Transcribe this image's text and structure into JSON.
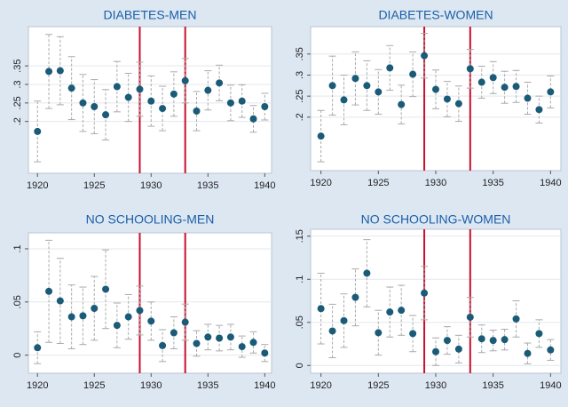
{
  "chart_data": [
    {
      "type": "errorbar",
      "title": "DIABETES-MEN",
      "x": [
        1920,
        1921,
        1922,
        1923,
        1924,
        1925,
        1926,
        1927,
        1928,
        1929,
        1930,
        1931,
        1932,
        1933,
        1934,
        1935,
        1936,
        1937,
        1938,
        1939,
        1940
      ],
      "values": [
        0.173,
        0.335,
        0.337,
        0.29,
        0.25,
        0.24,
        0.218,
        0.294,
        0.265,
        0.287,
        0.255,
        0.235,
        0.274,
        0.31,
        0.228,
        0.284,
        0.304,
        0.25,
        0.255,
        0.207,
        0.24
      ],
      "errors": [
        0.082,
        0.1,
        0.092,
        0.085,
        0.077,
        0.073,
        0.068,
        0.068,
        0.065,
        0.073,
        0.068,
        0.06,
        0.06,
        0.06,
        0.053,
        0.053,
        0.048,
        0.048,
        0.044,
        0.036,
        0.036
      ],
      "xlim": [
        1919.2,
        1940.6
      ],
      "ylim": [
        0.06,
        0.456
      ],
      "xticks": [
        1920,
        1925,
        1930,
        1935,
        1940
      ],
      "yticks": [
        {
          "value": 0.2,
          "label": ".2"
        },
        {
          "value": 0.25,
          "label": ".25"
        },
        {
          "value": 0.3,
          "label": ".3"
        },
        {
          "value": 0.35,
          "label": ".35"
        }
      ],
      "vlines": [
        1929,
        1933
      ],
      "color": "#1a5b78",
      "vline_color": "#c8102e",
      "grid": true
    },
    {
      "type": "errorbar",
      "title": "DIABETES-WOMEN",
      "x": [
        1920,
        1921,
        1922,
        1923,
        1924,
        1925,
        1926,
        1927,
        1928,
        1929,
        1930,
        1931,
        1932,
        1933,
        1934,
        1935,
        1936,
        1937,
        1938,
        1939,
        1940
      ],
      "values": [
        0.155,
        0.275,
        0.241,
        0.292,
        0.275,
        0.26,
        0.317,
        0.23,
        0.302,
        0.346,
        0.266,
        0.243,
        0.232,
        0.315,
        0.283,
        0.294,
        0.271,
        0.273,
        0.245,
        0.218,
        0.26
      ],
      "errors": [
        0.061,
        0.07,
        0.059,
        0.063,
        0.059,
        0.053,
        0.053,
        0.046,
        0.053,
        0.053,
        0.046,
        0.042,
        0.042,
        0.046,
        0.038,
        0.038,
        0.038,
        0.038,
        0.038,
        0.032,
        0.038
      ],
      "xlim": [
        1919.1,
        1940.9
      ],
      "ylim": [
        0.073,
        0.415
      ],
      "xticks": [
        1920,
        1925,
        1930,
        1935,
        1940
      ],
      "yticks": [
        {
          "value": 0.2,
          "label": ".2"
        },
        {
          "value": 0.25,
          "label": ".25"
        },
        {
          "value": 0.3,
          "label": ".3"
        },
        {
          "value": 0.35,
          "label": ".35"
        }
      ],
      "vlines": [
        1929,
        1933
      ],
      "color": "#1a5b78",
      "vline_color": "#c8102e",
      "grid": true
    },
    {
      "type": "errorbar",
      "title": "NO SCHOOLING-MEN",
      "x": [
        1920,
        1921,
        1922,
        1923,
        1924,
        1925,
        1926,
        1927,
        1928,
        1929,
        1930,
        1931,
        1932,
        1933,
        1934,
        1935,
        1936,
        1937,
        1938,
        1939,
        1940
      ],
      "values": [
        0.007,
        0.06,
        0.051,
        0.036,
        0.037,
        0.044,
        0.062,
        0.028,
        0.036,
        0.042,
        0.032,
        0.009,
        0.021,
        0.031,
        0.011,
        0.017,
        0.016,
        0.017,
        0.008,
        0.012,
        0.002
      ],
      "errors": [
        0.015,
        0.048,
        0.04,
        0.03,
        0.027,
        0.03,
        0.037,
        0.021,
        0.021,
        0.023,
        0.018,
        0.015,
        0.015,
        0.017,
        0.012,
        0.012,
        0.012,
        0.012,
        0.01,
        0.01,
        0.008
      ],
      "xlim": [
        1919.2,
        1940.6
      ],
      "ylim": [
        -0.017,
        0.115
      ],
      "xticks": [
        1920,
        1925,
        1930,
        1935,
        1940
      ],
      "yticks": [
        0,
        {
          "value": 0.05,
          "label": ".05"
        },
        {
          "value": 0.1,
          "label": ".1"
        }
      ],
      "vlines": [
        1929,
        1933
      ],
      "color": "#1a5b78",
      "vline_color": "#c8102e",
      "grid": true
    },
    {
      "type": "errorbar",
      "title": "NO SCHOOLING-WOMEN",
      "x": [
        1920,
        1921,
        1922,
        1923,
        1924,
        1925,
        1926,
        1927,
        1928,
        1929,
        1930,
        1931,
        1932,
        1933,
        1934,
        1935,
        1936,
        1937,
        1938,
        1939,
        1940
      ],
      "values": [
        0.066,
        0.04,
        0.052,
        0.079,
        0.107,
        0.038,
        0.062,
        0.064,
        0.037,
        0.084,
        0.016,
        0.029,
        0.019,
        0.056,
        0.031,
        0.029,
        0.03,
        0.054,
        0.014,
        0.037,
        0.018
      ],
      "errors": [
        0.041,
        0.031,
        0.031,
        0.033,
        0.039,
        0.026,
        0.029,
        0.029,
        0.021,
        0.031,
        0.016,
        0.016,
        0.016,
        0.023,
        0.016,
        0.012,
        0.012,
        0.021,
        0.012,
        0.016,
        0.012
      ],
      "xlim": [
        1919.1,
        1940.9
      ],
      "ylim": [
        -0.009,
        0.158
      ],
      "xticks": [
        1920,
        1925,
        1930,
        1935,
        1940
      ],
      "yticks": [
        0,
        {
          "value": 0.05,
          "label": ".05"
        },
        {
          "value": 0.1,
          "label": ".1"
        },
        {
          "value": 0.15,
          "label": ".15"
        }
      ],
      "vlines": [
        1929,
        1933
      ],
      "color": "#1a5b78",
      "vline_color": "#c8102e",
      "grid": true
    }
  ]
}
